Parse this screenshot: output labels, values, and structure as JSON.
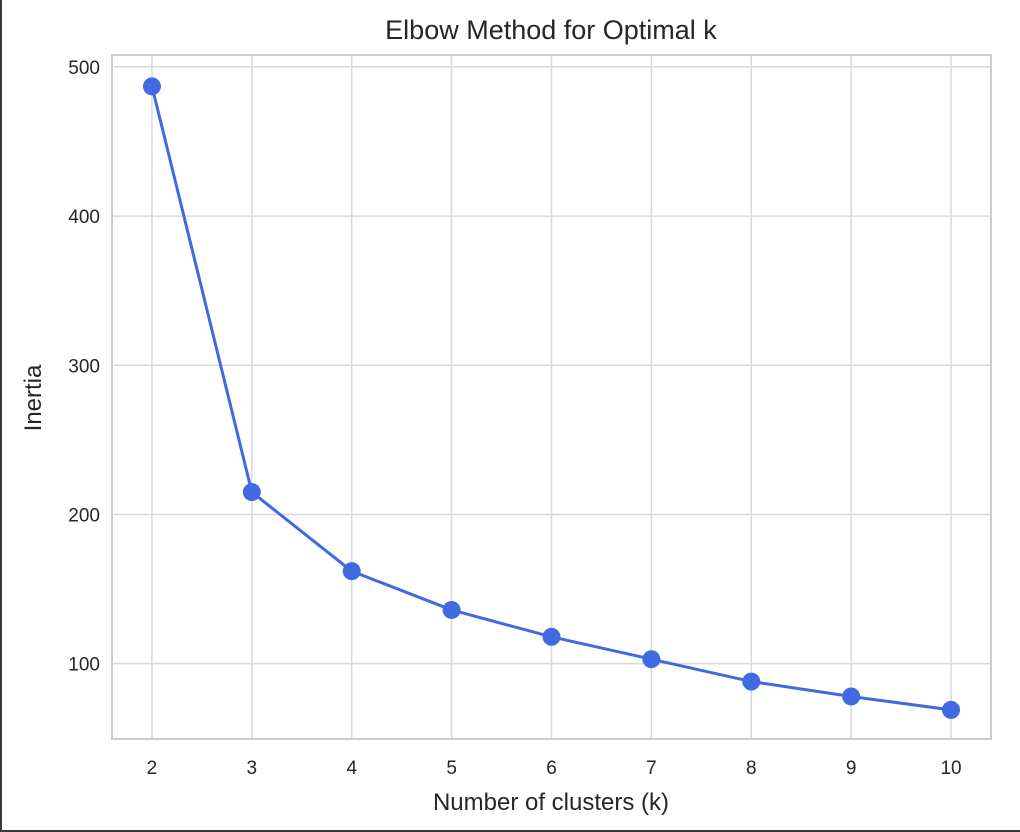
{
  "chart_data": {
    "type": "line",
    "title": "Elbow Method for Optimal k",
    "xlabel": "Number of clusters (k)",
    "ylabel": "Inertia",
    "x": [
      2,
      3,
      4,
      5,
      6,
      7,
      8,
      9,
      10
    ],
    "series": [
      {
        "values": [
          487,
          215,
          162,
          136,
          118,
          103,
          88,
          78,
          69
        ]
      }
    ],
    "xticks": [
      "2",
      "3",
      "4",
      "5",
      "6",
      "7",
      "8",
      "9",
      "10"
    ],
    "yticks": [
      "100",
      "200",
      "300",
      "400",
      "500"
    ],
    "xlim": [
      1.6,
      10.4
    ],
    "ylim": [
      49.5,
      508
    ],
    "grid": true,
    "line_color": "#4169e1",
    "grid_color": "#d9d9d9",
    "spine_color": "#cccccc"
  }
}
